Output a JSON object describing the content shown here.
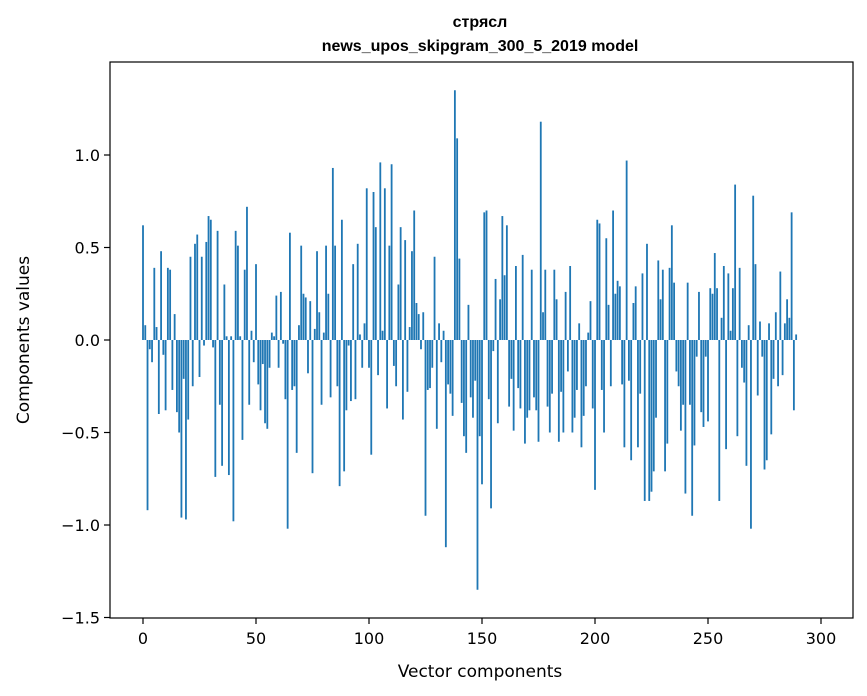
{
  "chart_data": {
    "type": "bar",
    "title": "стрясл",
    "subtitle": "news_upos_skipgram_300_5_2019 model",
    "xlabel": "Vector components",
    "ylabel": "Components values",
    "xlim": [
      -15,
      315
    ],
    "ylim": [
      -1.5,
      1.5
    ],
    "xticks": [
      0,
      50,
      100,
      150,
      200,
      250,
      300
    ],
    "yticks": [
      -1.5,
      -1.0,
      -0.5,
      0.0,
      0.5,
      1.0
    ],
    "ytick_labels": [
      "−1.5",
      "−1.0",
      "−0.5",
      "0.0",
      "0.5",
      "1.0"
    ],
    "grid": false,
    "bar_color": "#1f77b4",
    "x_start": 0,
    "values": [
      0.62,
      0.08,
      -0.92,
      -0.05,
      -0.12,
      0.39,
      0.07,
      -0.4,
      0.48,
      -0.08,
      -0.38,
      0.39,
      0.38,
      -0.27,
      0.14,
      -0.39,
      -0.5,
      -0.96,
      -0.21,
      -0.97,
      -0.43,
      0.45,
      -0.25,
      0.52,
      0.57,
      -0.2,
      0.45,
      -0.03,
      0.53,
      0.67,
      0.65,
      -0.04,
      -0.74,
      0.59,
      -0.35,
      -0.68,
      0.3,
      0.02,
      -0.73,
      0.02,
      -0.98,
      0.59,
      0.51,
      0.02,
      -0.54,
      0.38,
      0.72,
      -0.35,
      0.05,
      -0.12,
      0.41,
      -0.24,
      -0.38,
      -0.13,
      -0.45,
      -0.48,
      -0.15,
      0.04,
      0.02,
      0.24,
      -0.15,
      0.26,
      -0.02,
      -0.32,
      -1.02,
      0.58,
      -0.27,
      -0.25,
      -0.61,
      0.08,
      0.51,
      0.25,
      0.23,
      -0.18,
      0.21,
      -0.72,
      0.06,
      0.48,
      0.15,
      -0.35,
      0.04,
      0.51,
      0.25,
      -0.31,
      0.93,
      0.51,
      -0.25,
      -0.79,
      0.65,
      -0.71,
      -0.38,
      -0.03,
      -0.33,
      0.41,
      -0.32,
      0.52,
      0.03,
      -0.15,
      0.09,
      0.82,
      -0.15,
      -0.62,
      0.8,
      0.61,
      -0.19,
      0.96,
      0.05,
      0.82,
      -0.37,
      0.51,
      0.95,
      -0.14,
      -0.25,
      0.3,
      0.61,
      -0.43,
      0.54,
      -0.28,
      0.07,
      0.48,
      0.7,
      0.2,
      0.14,
      -0.05,
      0.15,
      -0.95,
      -0.27,
      -0.26,
      -0.15,
      0.45,
      -0.48,
      0.09,
      -0.12,
      0.05,
      -1.12,
      -0.24,
      -0.29,
      -0.41,
      1.35,
      1.09,
      0.44,
      -0.34,
      -0.52,
      -0.61,
      0.19,
      -0.31,
      -0.42,
      -0.22,
      -1.35,
      -0.52,
      -0.78,
      0.69,
      0.7,
      -0.32,
      -0.91,
      -0.06,
      0.33,
      -0.45,
      0.22,
      0.67,
      0.35,
      0.62,
      -0.36,
      -0.21,
      -0.49,
      0.4,
      -0.26,
      -0.37,
      0.46,
      -0.56,
      -0.42,
      -0.38,
      0.38,
      -0.31,
      -0.38,
      -0.55,
      1.18,
      0.15,
      0.38,
      -0.36,
      -0.5,
      -0.29,
      0.38,
      0.22,
      -0.55,
      -0.28,
      -0.5,
      0.26,
      -0.17,
      0.4,
      -0.5,
      -0.42,
      -0.27,
      0.09,
      -0.58,
      -0.41,
      -0.25,
      0.04,
      0.21,
      -0.37,
      -0.81,
      0.65,
      0.63,
      -0.27,
      -0.5,
      0.55,
      0.19,
      -0.25,
      0.7,
      0.25,
      0.32,
      0.29,
      -0.24,
      -0.58,
      0.97,
      -0.22,
      -0.65,
      0.2,
      0.29,
      -0.58,
      -0.29,
      0.36,
      -0.87,
      0.52,
      -0.87,
      -0.82,
      -0.71,
      -0.42,
      0.43,
      0.22,
      0.38,
      -0.71,
      -0.56,
      0.39,
      0.62,
      0.31,
      -0.17,
      -0.25,
      -0.49,
      -0.35,
      -0.83,
      0.31,
      -0.35,
      -0.95,
      -0.57,
      -0.09,
      0.26,
      -0.39,
      -0.47,
      -0.09,
      -0.44,
      0.28,
      0.25,
      0.47,
      0.28,
      -0.87,
      0.12,
      0.4,
      -0.59,
      0.36,
      0.05,
      0.28,
      0.84,
      -0.52,
      0.39,
      -0.15,
      -0.23,
      -0.68,
      0.08,
      -1.02,
      0.78,
      0.41,
      -0.3,
      0.1,
      -0.09,
      -0.7,
      -0.65,
      0.09,
      -0.51,
      -0.21,
      0.15,
      -0.25,
      0.37,
      -0.19,
      0.09,
      0.22,
      0.12,
      0.69,
      -0.38,
      0.03
    ]
  }
}
